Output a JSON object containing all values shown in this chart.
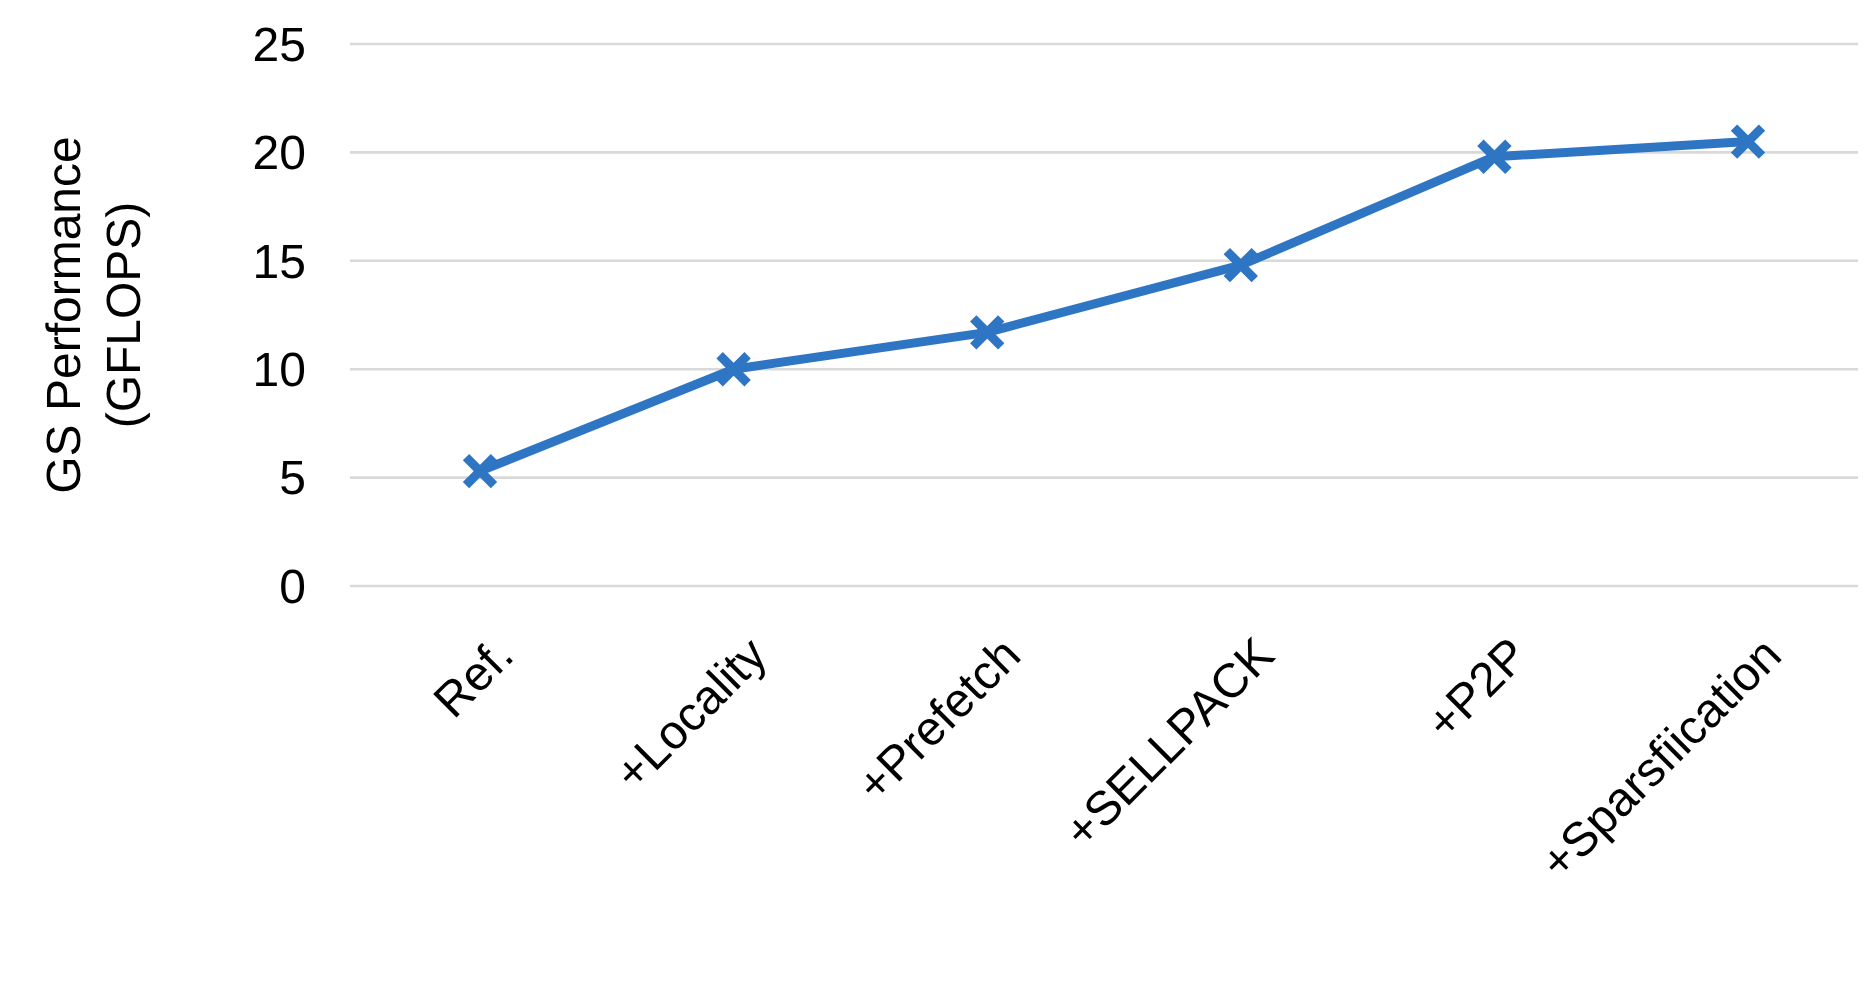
{
  "chart_data": {
    "type": "line",
    "ylabel": "GS Performance\n(GFLOPS)",
    "categories": [
      "Ref.",
      "+Locality",
      "+Prefetch",
      "+SELLPACK",
      "+P2P",
      "+Sparsfiication"
    ],
    "series": [
      {
        "color": "#2e75c4",
        "values": [
          5.3,
          10,
          11.7,
          14.8,
          19.8,
          20.5
        ]
      }
    ],
    "ylim": [
      0,
      25
    ],
    "yticks": [
      0,
      5,
      10,
      15,
      20,
      25
    ],
    "grid": "y",
    "marker": "cross",
    "line_style": "solid"
  }
}
